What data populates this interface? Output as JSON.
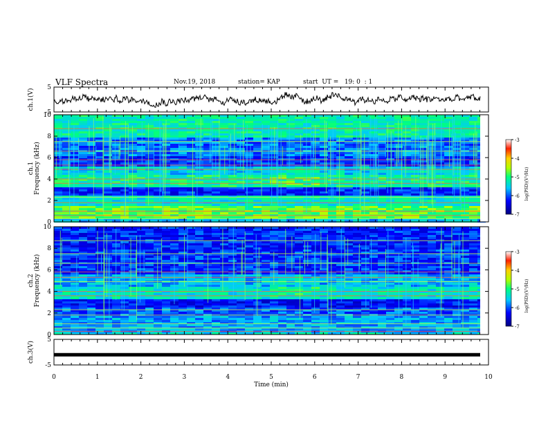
{
  "header": {
    "title": "VLF Spectra",
    "date": "Nov.19, 2018",
    "station": "station= KAP",
    "start": "start  UT =   19: 0  : 1"
  },
  "chart_data": [
    {
      "type": "line",
      "panel": "ch1-waveform",
      "ylabel": "ch.1(V)",
      "yticks": [
        "5",
        "-5"
      ],
      "ylim": [
        -5,
        5
      ],
      "xlim": [
        0,
        10
      ],
      "series": [
        {
          "values_note": "noisy waveform, roughly between -3 and +3 V",
          "color": "#000000"
        }
      ]
    },
    {
      "type": "heatmap",
      "panel": "ch1-spectrogram",
      "ylabel": "ch.1\nFrequency (kHz)",
      "yticks": [
        "0",
        "2",
        "4",
        "6",
        "8",
        "10"
      ],
      "ylim": [
        0,
        10
      ],
      "xlim": [
        0,
        10
      ],
      "colorbar": {
        "label": "log(PSD)(V²/Hz)",
        "ticks": [
          "-3",
          "-4",
          "-5",
          "-6",
          "-7"
        ],
        "range": [
          -7,
          -3
        ]
      }
    },
    {
      "type": "heatmap",
      "panel": "ch2-spectrogram",
      "ylabel": "ch.2\nFrequency (kHz)",
      "yticks": [
        "0",
        "2",
        "4",
        "6",
        "8",
        "10"
      ],
      "ylim": [
        0,
        10
      ],
      "xlim": [
        0,
        10
      ],
      "colorbar": {
        "label": "log(PSD)(V²/Hz)",
        "ticks": [
          "-3",
          "-4",
          "-5",
          "-6",
          "-7"
        ],
        "range": [
          -7,
          -3
        ]
      }
    },
    {
      "type": "line",
      "panel": "ch3-waveform",
      "ylabel": "ch.3(V)",
      "yticks": [
        "5",
        "-5"
      ],
      "ylim": [
        -5,
        5
      ],
      "xlim": [
        0,
        10
      ],
      "series": [
        {
          "values_note": "flat thick trace near -1 V",
          "level": -1,
          "color": "#000000"
        }
      ]
    }
  ],
  "xaxis": {
    "label": "Time  (min)",
    "ticks": [
      "0",
      "1",
      "2",
      "3",
      "4",
      "5",
      "6",
      "7",
      "8",
      "9",
      "10"
    ]
  }
}
